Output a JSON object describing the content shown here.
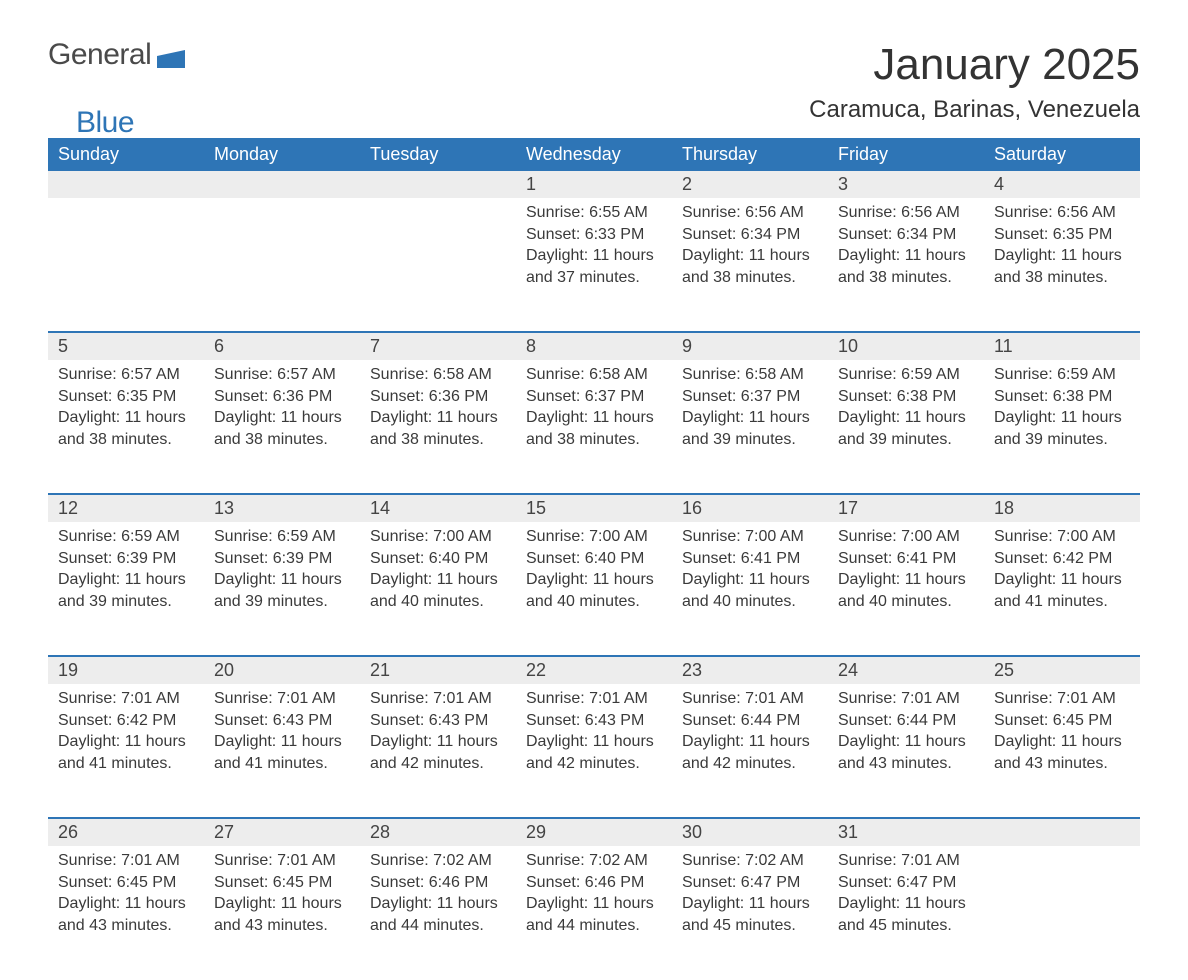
{
  "logo": {
    "text1": "General",
    "text2": "Blue",
    "shape_color": "#2e75b6"
  },
  "title": "January 2025",
  "subtitle": "Caramuca, Barinas, Venezuela",
  "colors": {
    "header_bg": "#2e75b6",
    "header_text": "#ffffff",
    "daynum_bg": "#ededed",
    "row_divider": "#2e75b6",
    "body_text": "#3a3a3a",
    "page_bg": "#ffffff"
  },
  "typography": {
    "title_fontsize": 44,
    "subtitle_fontsize": 24,
    "header_fontsize": 18,
    "daynum_fontsize": 18,
    "cell_fontsize": 16,
    "font_family": "Arial"
  },
  "columns": [
    "Sunday",
    "Monday",
    "Tuesday",
    "Wednesday",
    "Thursday",
    "Friday",
    "Saturday"
  ],
  "weeks": [
    [
      null,
      null,
      null,
      {
        "n": "1",
        "sunrise": "6:55 AM",
        "sunset": "6:33 PM",
        "daylight": "11 hours and 37 minutes."
      },
      {
        "n": "2",
        "sunrise": "6:56 AM",
        "sunset": "6:34 PM",
        "daylight": "11 hours and 38 minutes."
      },
      {
        "n": "3",
        "sunrise": "6:56 AM",
        "sunset": "6:34 PM",
        "daylight": "11 hours and 38 minutes."
      },
      {
        "n": "4",
        "sunrise": "6:56 AM",
        "sunset": "6:35 PM",
        "daylight": "11 hours and 38 minutes."
      }
    ],
    [
      {
        "n": "5",
        "sunrise": "6:57 AM",
        "sunset": "6:35 PM",
        "daylight": "11 hours and 38 minutes."
      },
      {
        "n": "6",
        "sunrise": "6:57 AM",
        "sunset": "6:36 PM",
        "daylight": "11 hours and 38 minutes."
      },
      {
        "n": "7",
        "sunrise": "6:58 AM",
        "sunset": "6:36 PM",
        "daylight": "11 hours and 38 minutes."
      },
      {
        "n": "8",
        "sunrise": "6:58 AM",
        "sunset": "6:37 PM",
        "daylight": "11 hours and 38 minutes."
      },
      {
        "n": "9",
        "sunrise": "6:58 AM",
        "sunset": "6:37 PM",
        "daylight": "11 hours and 39 minutes."
      },
      {
        "n": "10",
        "sunrise": "6:59 AM",
        "sunset": "6:38 PM",
        "daylight": "11 hours and 39 minutes."
      },
      {
        "n": "11",
        "sunrise": "6:59 AM",
        "sunset": "6:38 PM",
        "daylight": "11 hours and 39 minutes."
      }
    ],
    [
      {
        "n": "12",
        "sunrise": "6:59 AM",
        "sunset": "6:39 PM",
        "daylight": "11 hours and 39 minutes."
      },
      {
        "n": "13",
        "sunrise": "6:59 AM",
        "sunset": "6:39 PM",
        "daylight": "11 hours and 39 minutes."
      },
      {
        "n": "14",
        "sunrise": "7:00 AM",
        "sunset": "6:40 PM",
        "daylight": "11 hours and 40 minutes."
      },
      {
        "n": "15",
        "sunrise": "7:00 AM",
        "sunset": "6:40 PM",
        "daylight": "11 hours and 40 minutes."
      },
      {
        "n": "16",
        "sunrise": "7:00 AM",
        "sunset": "6:41 PM",
        "daylight": "11 hours and 40 minutes."
      },
      {
        "n": "17",
        "sunrise": "7:00 AM",
        "sunset": "6:41 PM",
        "daylight": "11 hours and 40 minutes."
      },
      {
        "n": "18",
        "sunrise": "7:00 AM",
        "sunset": "6:42 PM",
        "daylight": "11 hours and 41 minutes."
      }
    ],
    [
      {
        "n": "19",
        "sunrise": "7:01 AM",
        "sunset": "6:42 PM",
        "daylight": "11 hours and 41 minutes."
      },
      {
        "n": "20",
        "sunrise": "7:01 AM",
        "sunset": "6:43 PM",
        "daylight": "11 hours and 41 minutes."
      },
      {
        "n": "21",
        "sunrise": "7:01 AM",
        "sunset": "6:43 PM",
        "daylight": "11 hours and 42 minutes."
      },
      {
        "n": "22",
        "sunrise": "7:01 AM",
        "sunset": "6:43 PM",
        "daylight": "11 hours and 42 minutes."
      },
      {
        "n": "23",
        "sunrise": "7:01 AM",
        "sunset": "6:44 PM",
        "daylight": "11 hours and 42 minutes."
      },
      {
        "n": "24",
        "sunrise": "7:01 AM",
        "sunset": "6:44 PM",
        "daylight": "11 hours and 43 minutes."
      },
      {
        "n": "25",
        "sunrise": "7:01 AM",
        "sunset": "6:45 PM",
        "daylight": "11 hours and 43 minutes."
      }
    ],
    [
      {
        "n": "26",
        "sunrise": "7:01 AM",
        "sunset": "6:45 PM",
        "daylight": "11 hours and 43 minutes."
      },
      {
        "n": "27",
        "sunrise": "7:01 AM",
        "sunset": "6:45 PM",
        "daylight": "11 hours and 43 minutes."
      },
      {
        "n": "28",
        "sunrise": "7:02 AM",
        "sunset": "6:46 PM",
        "daylight": "11 hours and 44 minutes."
      },
      {
        "n": "29",
        "sunrise": "7:02 AM",
        "sunset": "6:46 PM",
        "daylight": "11 hours and 44 minutes."
      },
      {
        "n": "30",
        "sunrise": "7:02 AM",
        "sunset": "6:47 PM",
        "daylight": "11 hours and 45 minutes."
      },
      {
        "n": "31",
        "sunrise": "7:01 AM",
        "sunset": "6:47 PM",
        "daylight": "11 hours and 45 minutes."
      },
      null
    ]
  ],
  "labels": {
    "sunrise": "Sunrise: ",
    "sunset": "Sunset: ",
    "daylight": "Daylight: "
  }
}
